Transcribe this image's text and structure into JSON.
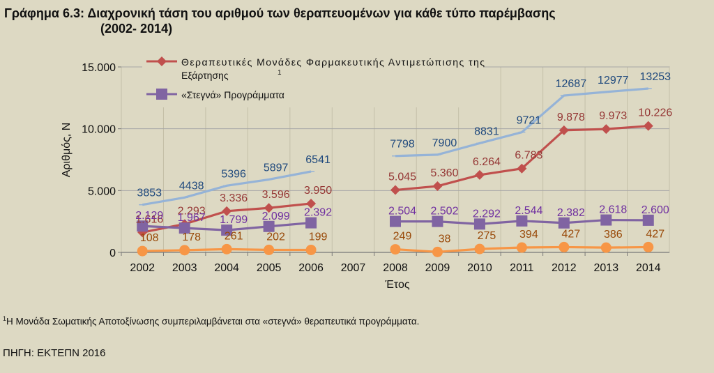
{
  "title_line1": "Γράφημα 6.3:  Διαχρονική τάση του αριθμού των θεραπευομένων για κάθε τύπο παρέμβασης",
  "title_line2": "(2002- 2014)",
  "footnote_mark": "1",
  "footnote_text": "Η Μονάδα Σωματικής Αποτοξίνωσης συμπεριλαμβάνεται στα «στεγνά» θεραπευτικά προγράμματα.",
  "source": "ΠΗΓΗ: ΕΚΤΕΠΝ 2016",
  "chart_data": {
    "type": "line",
    "xlabel": "Έτος",
    "ylabel": "Αριθμός, Ν",
    "ylim": [
      0,
      15000
    ],
    "yticks": [
      "0",
      "5.000",
      "10.000",
      "15.000"
    ],
    "ytick_values": [
      0,
      5000,
      10000,
      15000
    ],
    "categories": [
      "2002",
      "2003",
      "2004",
      "2005",
      "2006",
      "2007",
      "2008",
      "2009",
      "2010",
      "2011",
      "2012",
      "2013",
      "2014"
    ],
    "legend_position": "top-left",
    "series": [
      {
        "name": "total",
        "legend": "",
        "color": "#95b3d7",
        "marker": "none",
        "values": [
          3853,
          4438,
          5396,
          5897,
          6541,
          null,
          7798,
          7900,
          8831,
          9721,
          12687,
          12977,
          13253
        ],
        "labels": [
          "3853",
          "4438",
          "5396",
          "5897",
          "6541",
          "",
          "7798",
          "7900",
          "8831",
          "9721",
          "12687",
          "12977",
          "13253"
        ],
        "label_color": "#1f497d"
      },
      {
        "name": "pharma",
        "legend": "Θεραπευτικές Μονάδες Φαρμακευτικής Αντιμετώπισης της Εξάρτησης",
        "legend_sup": "1",
        "color": "#c0504d",
        "marker": "diamond",
        "values": [
          1616,
          2293,
          3336,
          3596,
          3950,
          null,
          5045,
          5360,
          6264,
          6783,
          9878,
          9973,
          10226
        ],
        "labels": [
          "1.616",
          "2.293",
          "3.336",
          "3.596",
          "3.950",
          "",
          "5.045",
          "5.360",
          "6.264",
          "6.783",
          "9.878",
          "9.973",
          "10.226"
        ],
        "label_color": "#953735"
      },
      {
        "name": "dry",
        "legend": "«Στεγνά» Προγράμματα",
        "color": "#8064a2",
        "marker": "square",
        "values": [
          2129,
          1967,
          1799,
          2099,
          2392,
          null,
          2504,
          2502,
          2292,
          2544,
          2382,
          2618,
          2600
        ],
        "labels": [
          "2.129",
          "1.967",
          "1.799",
          "2.099",
          "2.392",
          "",
          "2.504",
          "2.502",
          "2.292",
          "2.544",
          "2.382",
          "2.618",
          "2.600"
        ],
        "label_color": "#7030a0"
      },
      {
        "name": "other",
        "legend": "",
        "color": "#f79646",
        "marker": "circle",
        "values": [
          108,
          178,
          261,
          202,
          199,
          null,
          249,
          38,
          275,
          394,
          427,
          386,
          427
        ],
        "labels": [
          "108",
          "178",
          "261",
          "202",
          "199",
          "",
          "249",
          "38",
          "275",
          "394",
          "427",
          "386",
          "427"
        ],
        "label_color": "#984807"
      }
    ]
  }
}
